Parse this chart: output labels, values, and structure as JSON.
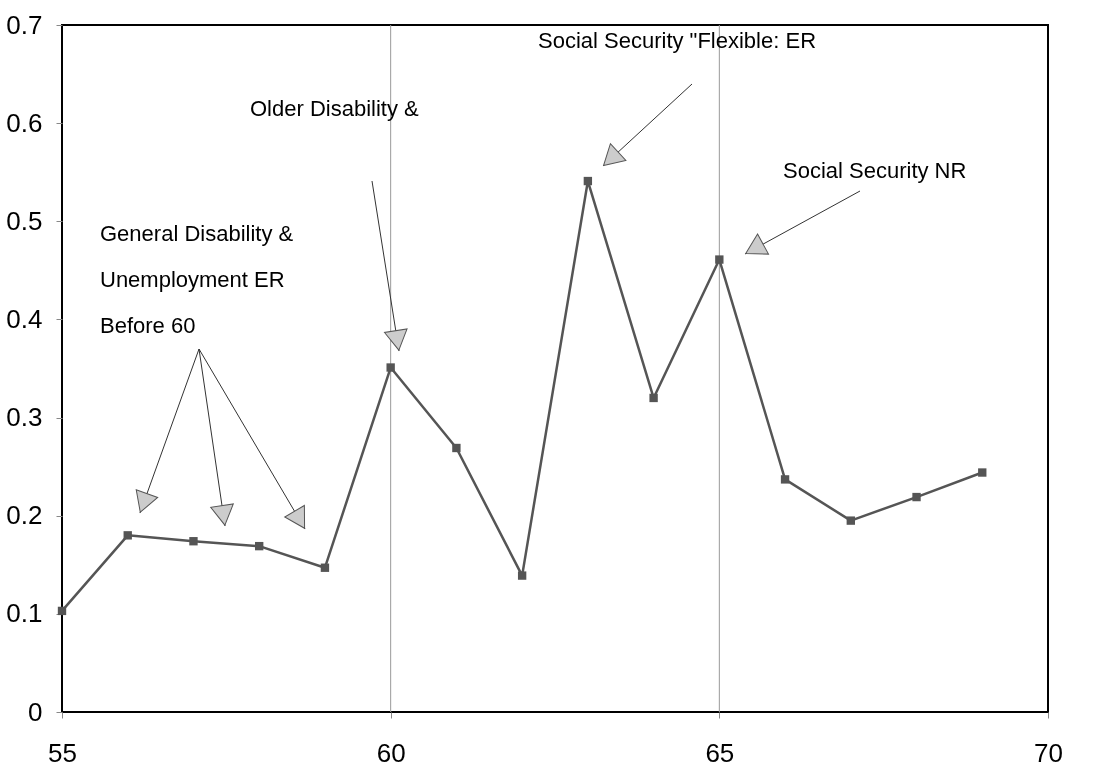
{
  "chart_data": {
    "type": "line",
    "x": [
      55,
      56,
      57,
      58,
      59,
      60,
      61,
      62,
      63,
      64,
      65,
      66,
      67,
      68,
      69
    ],
    "series": [
      {
        "color": "#555555",
        "values": [
          0.103,
          0.18,
          0.174,
          0.169,
          0.147,
          0.351,
          0.269,
          0.139,
          0.541,
          0.32,
          0.461,
          0.237,
          0.195,
          0.219,
          0.244
        ]
      }
    ],
    "xlim": [
      55,
      70
    ],
    "xticks": [
      55,
      60,
      65,
      70
    ],
    "ylim": [
      0,
      0.7
    ],
    "yticks": [
      0,
      0.1,
      0.2,
      0.3,
      0.4,
      0.5,
      0.6,
      0.7
    ],
    "ref_lines": [
      {
        "axis": "x",
        "value": 60,
        "color": "#999999"
      },
      {
        "axis": "x",
        "value": 65,
        "color": "#999999"
      }
    ],
    "annotations": [
      "General Disability &\nUnemployment ER\nBefore 60",
      "Older  Disability &",
      "Social Security \"Flexible: ER",
      "Social Security NR"
    ],
    "marker": "square",
    "line_style": "solid",
    "grid": false,
    "legend": false
  }
}
